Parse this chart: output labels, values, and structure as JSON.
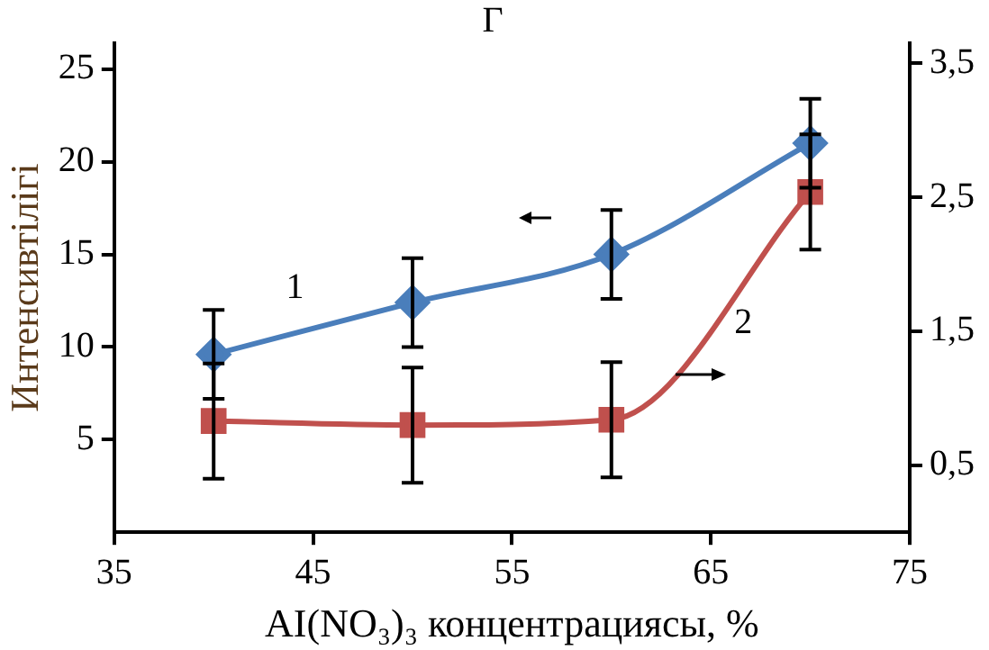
{
  "chart_data": {
    "type": "line",
    "title": "Г",
    "xlabel": "AI(NO₃)₃ концентрациясы, %",
    "ylabel": "Интенсивтілігі",
    "xlim": [
      35,
      75
    ],
    "xticks": [
      35,
      45,
      55,
      65,
      75
    ],
    "ylim": [
      0,
      26.4
    ],
    "yticks": [
      5,
      10,
      15,
      20,
      25
    ],
    "y2lim": [
      0,
      3.65
    ],
    "y2ticks": [
      {
        "value": 0.5,
        "label": "0,5"
      },
      {
        "value": 1.5,
        "label": "1,5"
      },
      {
        "value": 2.5,
        "label": "2,5"
      },
      {
        "value": 3.5,
        "label": "3,5"
      }
    ],
    "x": [
      40,
      50,
      60,
      70
    ],
    "series": [
      {
        "name": "1",
        "color": "#4a7ebb",
        "marker": "diamond",
        "values": [
          9.6,
          12.4,
          15.0,
          21.0
        ],
        "errors": [
          2.4,
          2.4,
          2.4,
          2.4
        ]
      },
      {
        "name": "2",
        "color": "#c0504d",
        "marker": "square",
        "axis": "y2",
        "values": [
          0.83,
          0.8,
          0.84,
          2.54
        ],
        "errors": [
          0.43,
          0.43,
          0.43,
          0.43
        ]
      }
    ],
    "grid": false,
    "legend": false,
    "line_style": "solid"
  }
}
